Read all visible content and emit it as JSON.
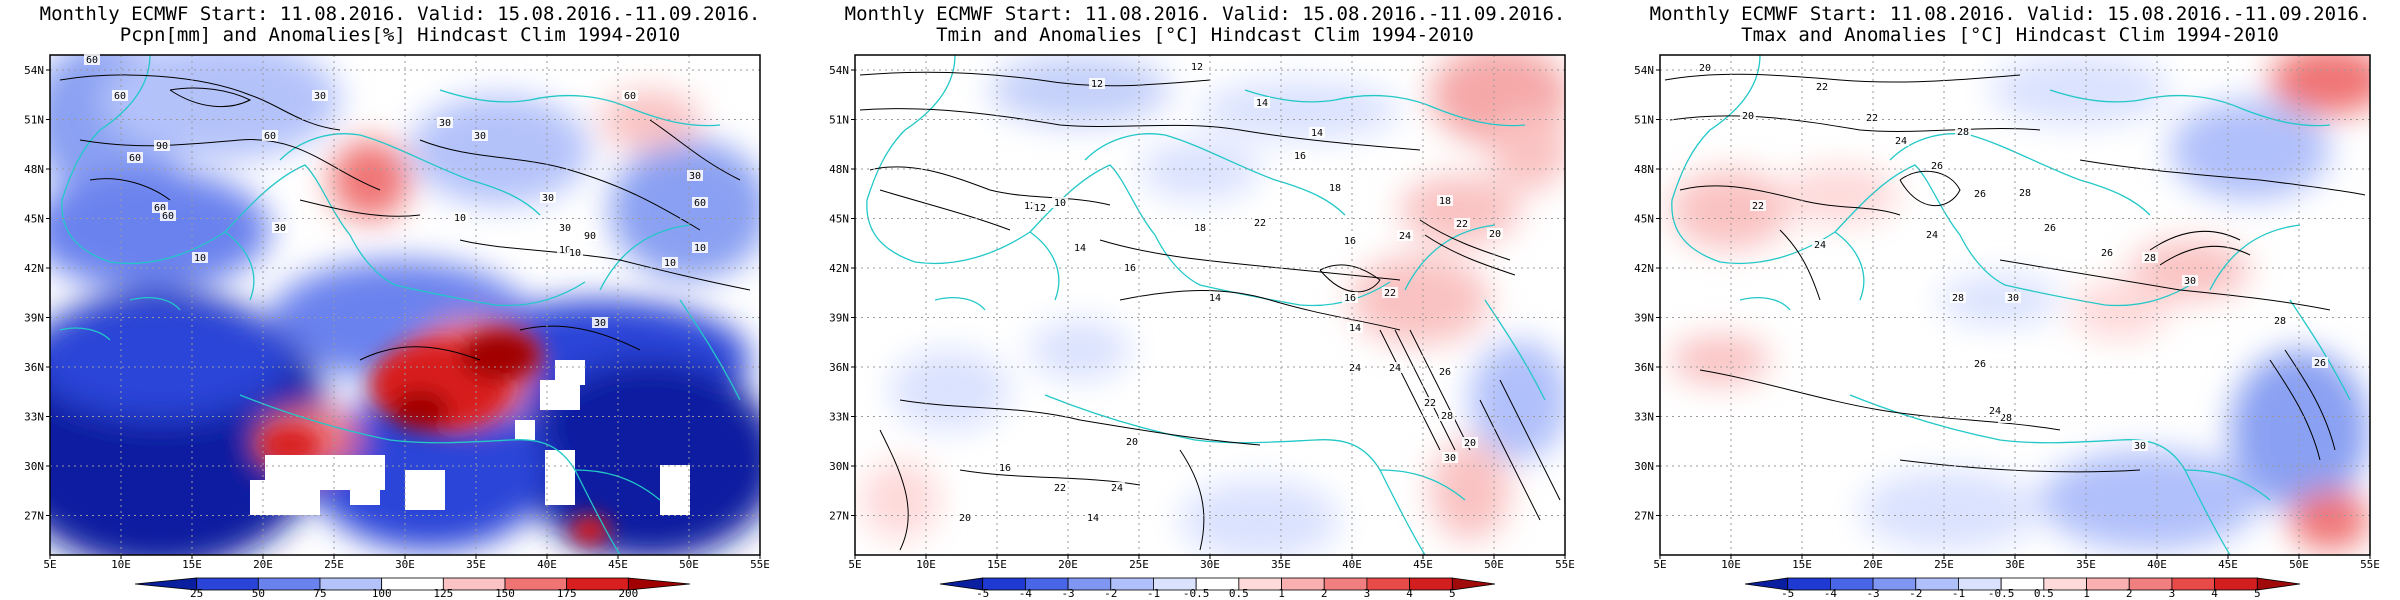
{
  "panels": [
    {
      "id": "pcpn",
      "title1": "Monthly ECMWF Start: 11.08.2016. Valid: 15.08.2016.-11.09.2016.",
      "title2": "Pcpn[mm] and Anomalies[%] Hindcast Clim 1994-2010",
      "x_labels": [
        "5E",
        "10E",
        "15E",
        "20E",
        "25E",
        "30E",
        "35E",
        "40E",
        "45E",
        "50E",
        "55E"
      ],
      "y_labels": [
        "54N",
        "51N",
        "48N",
        "45N",
        "42N",
        "39N",
        "36N",
        "33N",
        "30N",
        "27N"
      ],
      "colorbar": {
        "labels": [
          "25",
          "50",
          "75",
          "100",
          "125",
          "150",
          "175",
          "200"
        ],
        "colors": [
          "#0a1ea0",
          "#2a44d8",
          "#6a82ee",
          "#b4c2fa",
          "#ffffff",
          "#fac2c2",
          "#f07474",
          "#d81e1e",
          "#a00000"
        ]
      },
      "contour_labels": [
        "60",
        "60",
        "90",
        "60",
        "60",
        "60",
        "60",
        "30",
        "30",
        "10",
        "30",
        "10",
        "30",
        "30",
        "30",
        "10",
        "60",
        "90",
        "30",
        "60",
        "10",
        "30",
        "10",
        "10"
      ]
    },
    {
      "id": "tmin",
      "title1": "Monthly ECMWF Start: 11.08.2016. Valid: 15.08.2016.-11.09.2016.",
      "title2": "Tmin and Anomalies [°C] Hindcast Clim 1994-2010",
      "x_labels": [
        "5E",
        "10E",
        "15E",
        "20E",
        "25E",
        "30E",
        "35E",
        "40E",
        "45E",
        "50E",
        "55E"
      ],
      "y_labels": [
        "54N",
        "51N",
        "48N",
        "45N",
        "42N",
        "39N",
        "36N",
        "33N",
        "30N",
        "27N"
      ],
      "colorbar": {
        "labels": [
          "-5",
          "-4",
          "-3",
          "-2",
          "-1",
          "-0.5",
          "0.5",
          "1",
          "2",
          "3",
          "4",
          "5"
        ],
        "colors": [
          "#0a1ea0",
          "#1e3ad2",
          "#4a66e8",
          "#7f96f2",
          "#b0c0fa",
          "#dae2fe",
          "#ffffff",
          "#fedada",
          "#fab0b0",
          "#f27f7f",
          "#e84a4a",
          "#d21e1e",
          "#a00a0a"
        ]
      },
      "contour_labels": [
        "12",
        "12",
        "14",
        "16",
        "14",
        "12",
        "18",
        "16",
        "14",
        "10",
        "12",
        "14",
        "16",
        "18",
        "22",
        "24",
        "22",
        "18",
        "20",
        "16",
        "14",
        "22",
        "26",
        "24",
        "20",
        "22",
        "24",
        "28",
        "30",
        "20",
        "24",
        "22",
        "20",
        "16",
        "14"
      ]
    },
    {
      "id": "tmax",
      "title1": "Monthly ECMWF Start: 11.08.2016. Valid: 15.08.2016.-11.09.2016.",
      "title2": "Tmax and Anomalies [°C] Hindcast Clim 1994-2010",
      "x_labels": [
        "5E",
        "10E",
        "15E",
        "20E",
        "25E",
        "30E",
        "35E",
        "40E",
        "45E",
        "50E",
        "55E"
      ],
      "y_labels": [
        "54N",
        "51N",
        "48N",
        "45N",
        "42N",
        "39N",
        "36N",
        "33N",
        "30N",
        "27N"
      ],
      "colorbar": {
        "labels": [
          "-5",
          "-4",
          "-3",
          "-2",
          "-1",
          "-0.5",
          "0.5",
          "1",
          "2",
          "3",
          "4",
          "5"
        ],
        "colors": [
          "#0a1ea0",
          "#1e3ad2",
          "#4a66e8",
          "#7f96f2",
          "#b0c0fa",
          "#dae2fe",
          "#ffffff",
          "#fedada",
          "#fab0b0",
          "#f27f7f",
          "#e84a4a",
          "#d21e1e",
          "#a00a0a"
        ]
      },
      "contour_labels": [
        "20",
        "22",
        "20",
        "22",
        "24",
        "26",
        "28",
        "22",
        "24",
        "26",
        "28",
        "26",
        "24",
        "30",
        "28",
        "26",
        "28",
        "30",
        "26",
        "28",
        "30",
        "28",
        "26",
        "24"
      ]
    }
  ],
  "colors": {
    "frame": "#000000",
    "coast": "#22c8c8",
    "contour": "#000000",
    "grid": "#9a9a9a"
  }
}
